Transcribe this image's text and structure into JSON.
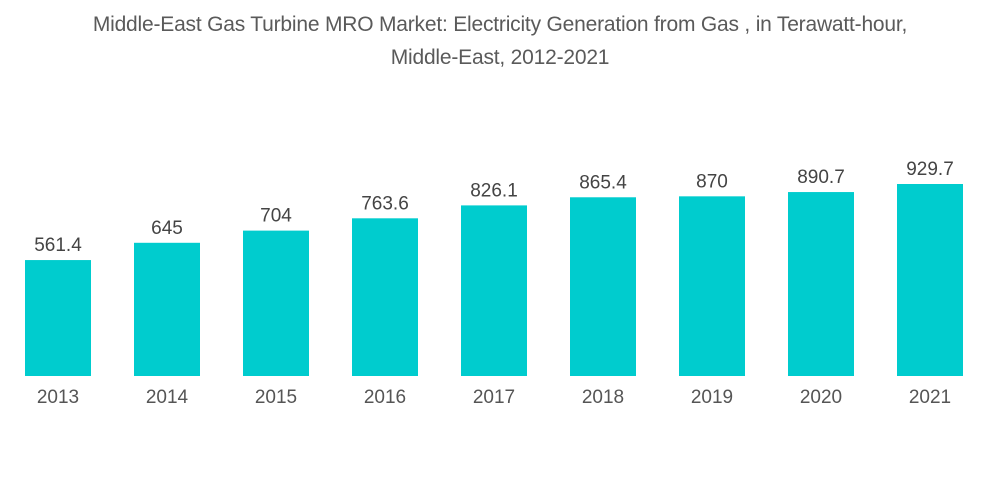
{
  "chart_data": {
    "type": "bar",
    "title": "Middle-East Gas Turbine MRO Market: Electricity Generation from Gas , in Terawatt-hour, Middle-East, 2012-2021",
    "title_lines": [
      "Middle-East Gas Turbine MRO Market: Electricity Generation from Gas , in Terawatt-hour,",
      "Middle-East, 2012-2021"
    ],
    "categories": [
      "2013",
      "2014",
      "2015",
      "2016",
      "2017",
      "2018",
      "2019",
      "2020",
      "2021"
    ],
    "values": [
      561.4,
      645,
      704,
      763.6,
      826.1,
      865.4,
      870,
      890.7,
      929.7
    ],
    "value_labels": [
      "561.4",
      "645",
      "704",
      "763.6",
      "826.1",
      "865.4",
      "870",
      "890.7",
      "929.7"
    ],
    "xlabel": "",
    "ylabel": "",
    "ylim": [
      0,
      929.7
    ],
    "grid": false,
    "legend": "none",
    "bar_color": "#00CCCE"
  }
}
